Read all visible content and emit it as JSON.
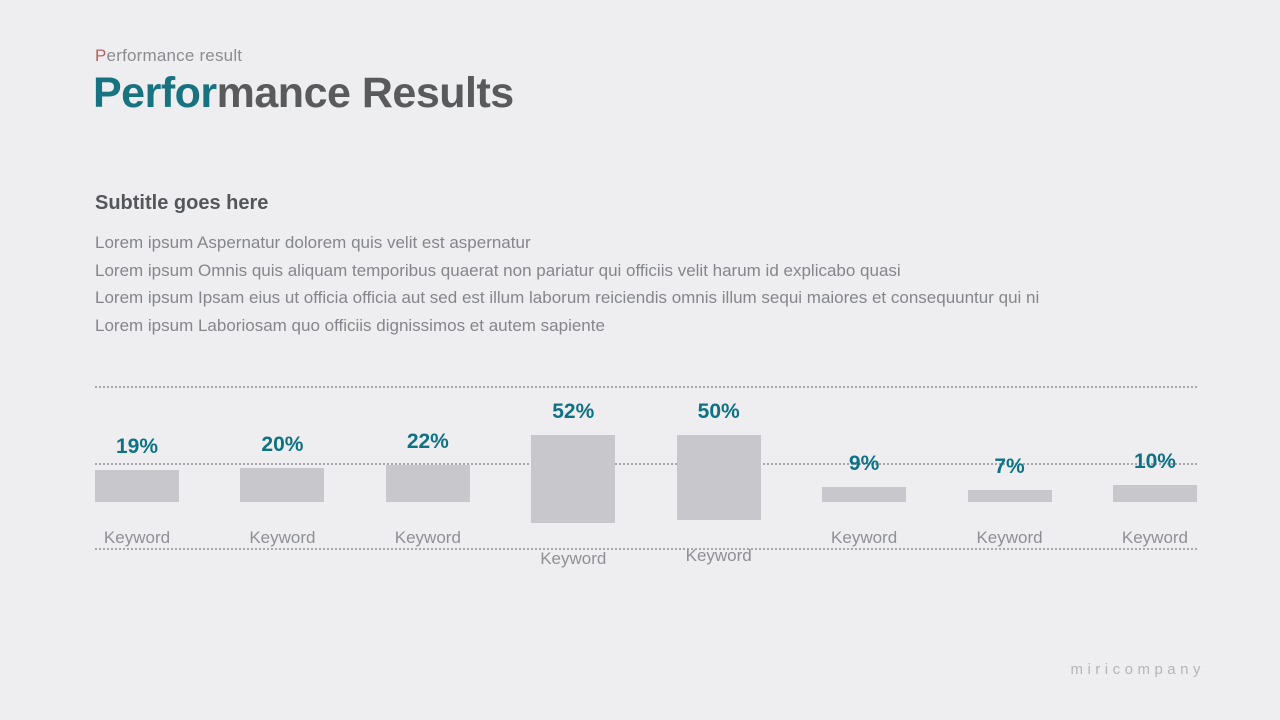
{
  "slide": {
    "eyebrow_initial": "P",
    "eyebrow_rest": "erformance result",
    "title_accent": "Perfor",
    "title_rest": "mance Results",
    "subtitle": "Subtitle goes here",
    "body_lines": [
      "Lorem ipsum Aspernatur dolorem quis velit est aspernatur",
      "Lorem ipsum Omnis quis aliquam temporibus quaerat non pariatur qui officiis velit harum id explicabo quasi",
      "Lorem ipsum Ipsam eius ut officia officia aut sed est illum laborum reiciendis omnis illum sequi maiores et consequuntur qui ni",
      "Lorem ipsum Laboriosam quo officiis dignissimos et autem sapiente"
    ],
    "footer_logo": "miricompany"
  },
  "chart_data": {
    "type": "bar",
    "title": "",
    "xlabel": "",
    "ylabel": "",
    "categories": [
      "Keyword",
      "Keyword",
      "Keyword",
      "Keyword",
      "Keyword",
      "Keyword",
      "Keyword",
      "Keyword"
    ],
    "values": [
      19,
      20,
      22,
      52,
      50,
      9,
      7,
      10
    ],
    "value_labels": [
      "19%",
      "20%",
      "22%",
      "52%",
      "50%",
      "9%",
      "7%",
      "10%"
    ],
    "ylim": [
      0,
      87
    ],
    "gridlines": {
      "style": "dotted",
      "levels": [
        0,
        50
      ]
    },
    "legend": "none",
    "bar_color": "#c8c8cc",
    "value_label_color": "#0e7184",
    "category_label_color": "#8f9095"
  },
  "colors": {
    "background": "#eeeef0",
    "accent_teal": "#17737f",
    "accent_red": "#b5625f",
    "title_gray": "#595a5c",
    "body_gray": "#85868b"
  }
}
